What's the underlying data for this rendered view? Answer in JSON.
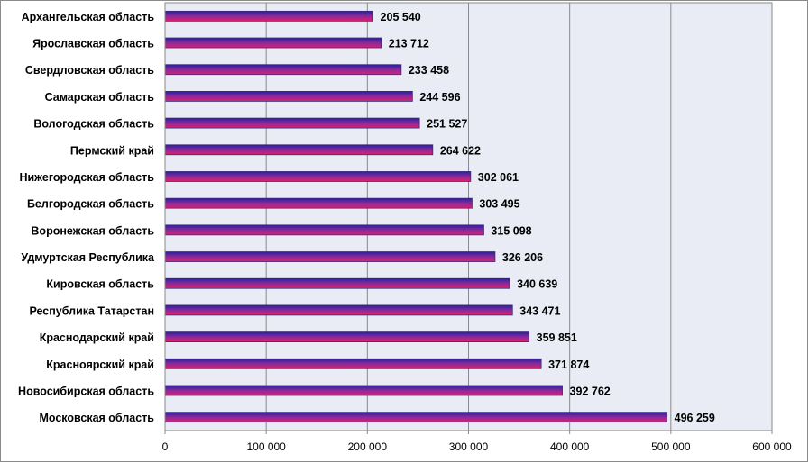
{
  "chart_data": {
    "type": "bar",
    "orientation": "horizontal",
    "categories": [
      "Архангельская область",
      "Ярославская область",
      "Свердловская область",
      "Самарская область",
      "Вологодская область",
      "Пермский край",
      "Нижегородская область",
      "Белгородская область",
      "Воронежская область",
      "Удмуртская Республика",
      "Кировская область",
      "Республика Татарстан",
      "Краснодарский край",
      "Красноярский край",
      "Новосибирская область",
      "Московская область"
    ],
    "values": [
      205540,
      213712,
      233458,
      244596,
      251527,
      264622,
      302061,
      303495,
      315098,
      326206,
      340639,
      343471,
      359851,
      371874,
      392762,
      496259
    ],
    "value_labels": [
      "205 540",
      "213 712",
      "233 458",
      "244 596",
      "251 527",
      "264 622",
      "302 061",
      "303 495",
      "315 098",
      "326 206",
      "340 639",
      "343 471",
      "359 851",
      "371 874",
      "392 762",
      "496 259"
    ],
    "xlim": [
      0,
      600000
    ],
    "xticks": [
      0,
      100000,
      200000,
      300000,
      400000,
      500000,
      600000
    ],
    "xtick_labels": [
      "0",
      "100 000",
      "200 000",
      "300 000",
      "400 000",
      "500 000",
      "600 000"
    ],
    "title": "",
    "xlabel": "",
    "ylabel": "",
    "grid": "vertical",
    "legend": "none",
    "colors": {
      "plot_background": "#e9ecf5",
      "gridline": "#8a8a8a",
      "bar_top": "#2a1fa0",
      "bar_bottom": "#e0206a",
      "bar_border": "#3a2a7a",
      "text": "#000000",
      "frame": "#8a8a8a"
    }
  }
}
